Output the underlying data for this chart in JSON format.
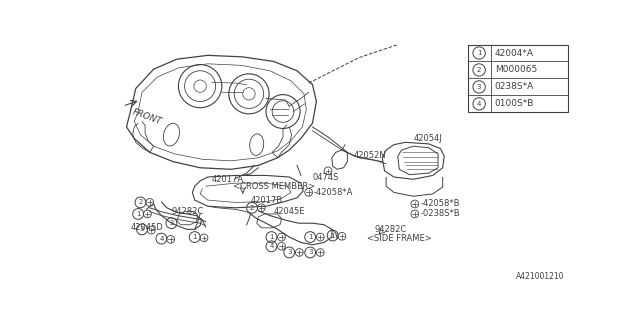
{
  "background_color": "#ffffff",
  "part_number_footer": "A421001210",
  "line_color": "#404040",
  "legend_items": [
    {
      "num": "1",
      "code": "42004*A"
    },
    {
      "num": "2",
      "code": "M000065"
    },
    {
      "num": "3",
      "code": "0238S*A"
    },
    {
      "num": "4",
      "code": "0100S*B"
    }
  ]
}
